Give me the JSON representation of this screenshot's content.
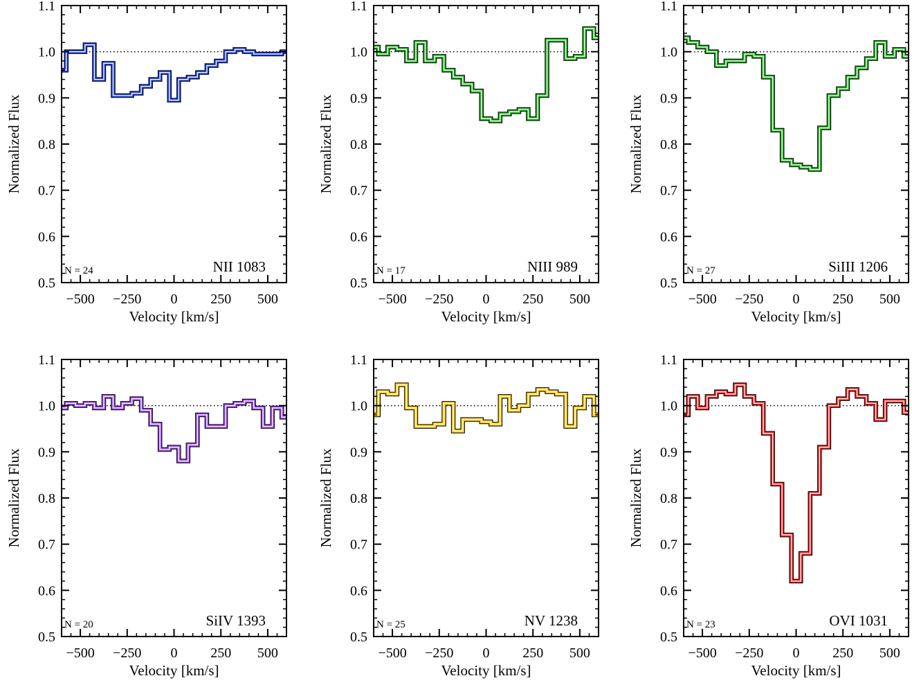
{
  "chart_data": [
    {
      "type": "line",
      "label": "NII 1083",
      "n_label": "N = 24",
      "color": "#1f3fe0",
      "xlabel": "Velocity [km/s]",
      "ylabel": "Normalized Flux",
      "xlim": [
        -600,
        600
      ],
      "ylim": [
        0.5,
        1.1
      ],
      "xticks": [
        -500,
        -250,
        0,
        250,
        500
      ],
      "xtick_labels": [
        "−500",
        "−250",
        "0",
        "250",
        "500"
      ],
      "yticks": [
        0.5,
        0.6,
        0.7,
        0.8,
        0.9,
        1.0,
        1.1
      ],
      "ytick_labels": [
        "0.5",
        "0.6",
        "0.7",
        "0.8",
        "0.9",
        "1.0",
        "1.1"
      ],
      "reference_line": 1.0,
      "bin_edges": [
        -600,
        -575,
        -475,
        -425,
        -375,
        -325,
        -225,
        -175,
        -125,
        -75,
        -25,
        25,
        75,
        125,
        175,
        225,
        275,
        325,
        375,
        425,
        475,
        525,
        575,
        600
      ],
      "flux": [
        0.96,
        1.0,
        1.015,
        0.94,
        0.975,
        0.905,
        0.91,
        0.925,
        0.94,
        0.955,
        0.895,
        0.94,
        0.945,
        0.955,
        0.97,
        0.98,
        1.0,
        1.005,
        1.0,
        0.995,
        0.995,
        0.995,
        1.0
      ]
    },
    {
      "type": "line",
      "label": "NIII 989",
      "n_label": "N = 17",
      "color": "#18b018",
      "xlabel": "Velocity [km/s]",
      "ylabel": "Normalized Flux",
      "xlim": [
        -600,
        600
      ],
      "ylim": [
        0.5,
        1.1
      ],
      "xticks": [
        -500,
        -250,
        0,
        250,
        500
      ],
      "xtick_labels": [
        "−500",
        "−250",
        "0",
        "250",
        "500"
      ],
      "yticks": [
        0.5,
        0.6,
        0.7,
        0.8,
        0.9,
        1.0,
        1.1
      ],
      "ytick_labels": [
        "0.5",
        "0.6",
        "0.7",
        "0.8",
        "0.9",
        "1.0",
        "1.1"
      ],
      "reference_line": 1.0,
      "bin_edges": [
        -600,
        -575,
        -525,
        -475,
        -425,
        -375,
        -325,
        -275,
        -225,
        -175,
        -125,
        -75,
        -25,
        25,
        75,
        125,
        175,
        225,
        275,
        325,
        375,
        425,
        475,
        525,
        575,
        600
      ],
      "flux": [
        1.01,
        0.995,
        1.01,
        1.005,
        0.98,
        1.02,
        0.98,
        0.99,
        0.96,
        0.945,
        0.93,
        0.915,
        0.855,
        0.85,
        0.865,
        0.87,
        0.875,
        0.855,
        0.905,
        1.025,
        1.025,
        0.985,
        0.99,
        1.05,
        1.03
      ]
    },
    {
      "type": "line",
      "label": "SiIII 1206",
      "n_label": "N = 27",
      "color": "#18b018",
      "xlabel": "Velocity [km/s]",
      "ylabel": "Normalized Flux",
      "xlim": [
        -600,
        600
      ],
      "ylim": [
        0.5,
        1.1
      ],
      "xticks": [
        -500,
        -250,
        0,
        250,
        500
      ],
      "xtick_labels": [
        "−500",
        "−250",
        "0",
        "250",
        "500"
      ],
      "yticks": [
        0.5,
        0.6,
        0.7,
        0.8,
        0.9,
        1.0,
        1.1
      ],
      "ytick_labels": [
        "0.5",
        "0.6",
        "0.7",
        "0.8",
        "0.9",
        "1.0",
        "1.1"
      ],
      "reference_line": 1.0,
      "bin_edges": [
        -600,
        -575,
        -525,
        -475,
        -425,
        -375,
        -325,
        -275,
        -225,
        -175,
        -125,
        -75,
        -25,
        25,
        75,
        125,
        175,
        225,
        275,
        325,
        375,
        425,
        475,
        525,
        575,
        600
      ],
      "flux": [
        1.03,
        1.02,
        1.01,
        1.0,
        0.97,
        0.98,
        0.98,
        0.995,
        0.99,
        0.945,
        0.83,
        0.765,
        0.755,
        0.75,
        0.745,
        0.835,
        0.905,
        0.92,
        0.945,
        0.965,
        0.985,
        1.02,
        0.99,
        1.005,
        0.99
      ]
    },
    {
      "type": "line",
      "label": "SiIV 1393",
      "n_label": "N = 20",
      "color": "#9b45e6",
      "xlabel": "Velocity [km/s]",
      "ylabel": "Normalized Flux",
      "xlim": [
        -600,
        600
      ],
      "ylim": [
        0.5,
        1.1
      ],
      "xticks": [
        -500,
        -250,
        0,
        250,
        500
      ],
      "xtick_labels": [
        "−500",
        "−250",
        "0",
        "250",
        "500"
      ],
      "yticks": [
        0.5,
        0.6,
        0.7,
        0.8,
        0.9,
        1.0,
        1.1
      ],
      "ytick_labels": [
        "0.5",
        "0.6",
        "0.7",
        "0.8",
        "0.9",
        "1.0",
        "1.1"
      ],
      "reference_line": 1.0,
      "bin_edges": [
        -600,
        -575,
        -525,
        -475,
        -425,
        -375,
        -325,
        -275,
        -225,
        -175,
        -125,
        -75,
        -25,
        25,
        75,
        125,
        175,
        225,
        275,
        325,
        375,
        425,
        475,
        525,
        575,
        600
      ],
      "flux": [
        0.995,
        1.005,
        1.0,
        1.005,
        0.995,
        1.02,
        0.995,
        1.005,
        1.015,
        0.99,
        0.96,
        0.905,
        0.91,
        0.88,
        0.915,
        0.98,
        0.955,
        0.955,
        1.0,
        1.005,
        1.01,
        0.995,
        0.955,
        0.995,
        0.975
      ]
    },
    {
      "type": "line",
      "label": "NV 1238",
      "n_label": "N = 25",
      "color": "#f5c400",
      "xlabel": "Velocity [km/s]",
      "ylabel": "Normalized Flux",
      "xlim": [
        -600,
        600
      ],
      "ylim": [
        0.5,
        1.1
      ],
      "xticks": [
        -500,
        -250,
        0,
        250,
        500
      ],
      "xtick_labels": [
        "−500",
        "−250",
        "0",
        "250",
        "500"
      ],
      "yticks": [
        0.5,
        0.6,
        0.7,
        0.8,
        0.9,
        1.0,
        1.1
      ],
      "ytick_labels": [
        "0.5",
        "0.6",
        "0.7",
        "0.8",
        "0.9",
        "1.0",
        "1.1"
      ],
      "reference_line": 1.0,
      "bin_edges": [
        -600,
        -575,
        -525,
        -475,
        -425,
        -375,
        -325,
        -275,
        -225,
        -175,
        -125,
        -75,
        -25,
        25,
        75,
        125,
        175,
        225,
        275,
        325,
        375,
        425,
        475,
        525,
        575,
        600
      ],
      "flux": [
        0.98,
        1.03,
        1.025,
        1.045,
        0.995,
        0.955,
        0.955,
        0.96,
        1.005,
        0.945,
        0.97,
        0.97,
        0.965,
        0.96,
        1.02,
        0.99,
        1.0,
        1.025,
        1.035,
        1.03,
        1.025,
        0.955,
        0.995,
        1.02,
        0.98
      ]
    },
    {
      "type": "line",
      "label": "OVI 1031",
      "n_label": "N = 23",
      "color": "#ee1c1c",
      "xlabel": "Velocity [km/s]",
      "ylabel": "Normalized Flux",
      "xlim": [
        -600,
        600
      ],
      "ylim": [
        0.5,
        1.1
      ],
      "xticks": [
        -500,
        -250,
        0,
        250,
        500
      ],
      "xtick_labels": [
        "−500",
        "−250",
        "0",
        "250",
        "500"
      ],
      "yticks": [
        0.5,
        0.6,
        0.7,
        0.8,
        0.9,
        1.0,
        1.1
      ],
      "ytick_labels": [
        "0.5",
        "0.6",
        "0.7",
        "0.8",
        "0.9",
        "1.0",
        "1.1"
      ],
      "reference_line": 1.0,
      "bin_edges": [
        -600,
        -575,
        -525,
        -475,
        -425,
        -375,
        -325,
        -275,
        -225,
        -175,
        -125,
        -75,
        -25,
        25,
        75,
        125,
        175,
        225,
        275,
        325,
        375,
        425,
        475,
        525,
        575,
        600
      ],
      "flux": [
        0.98,
        1.02,
        0.995,
        1.02,
        1.03,
        1.025,
        1.045,
        1.02,
        1.005,
        0.94,
        0.83,
        0.72,
        0.62,
        0.68,
        0.81,
        0.91,
        1.0,
        1.015,
        1.035,
        1.02,
        1.005,
        0.97,
        1.01,
        1.01,
        0.985
      ]
    }
  ]
}
